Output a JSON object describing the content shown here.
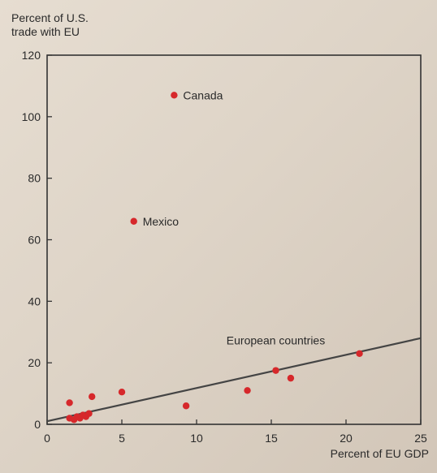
{
  "chart_data": {
    "type": "scatter",
    "ylabel_lines": [
      "Percent of U.S.",
      "trade with EU"
    ],
    "xlabel": "Percent of EU GDP",
    "xlim": [
      0,
      25
    ],
    "ylim": [
      0,
      120
    ],
    "x_ticks": [
      0,
      5,
      10,
      15,
      20,
      25
    ],
    "y_ticks": [
      0,
      20,
      40,
      60,
      80,
      100,
      120
    ],
    "grid": false,
    "point_color": "#d6282b",
    "points": [
      {
        "x": 8.5,
        "y": 107,
        "label": "Canada"
      },
      {
        "x": 5.8,
        "y": 66,
        "label": "Mexico"
      },
      {
        "x": 1.5,
        "y": 7
      },
      {
        "x": 1.5,
        "y": 2
      },
      {
        "x": 1.8,
        "y": 1.5
      },
      {
        "x": 2.0,
        "y": 2.5
      },
      {
        "x": 2.2,
        "y": 2
      },
      {
        "x": 2.4,
        "y": 3
      },
      {
        "x": 2.6,
        "y": 2.5
      },
      {
        "x": 2.8,
        "y": 3.5
      },
      {
        "x": 3.0,
        "y": 9
      },
      {
        "x": 5.0,
        "y": 10.5
      },
      {
        "x": 9.3,
        "y": 6
      },
      {
        "x": 13.4,
        "y": 11
      },
      {
        "x": 15.3,
        "y": 17.5
      },
      {
        "x": 16.3,
        "y": 15
      },
      {
        "x": 20.9,
        "y": 23
      }
    ],
    "annotations": [
      {
        "text": "European countries",
        "x": 12.0,
        "y": 26
      }
    ],
    "trend_line": {
      "x": [
        0,
        25
      ],
      "y": [
        1,
        28
      ]
    }
  }
}
